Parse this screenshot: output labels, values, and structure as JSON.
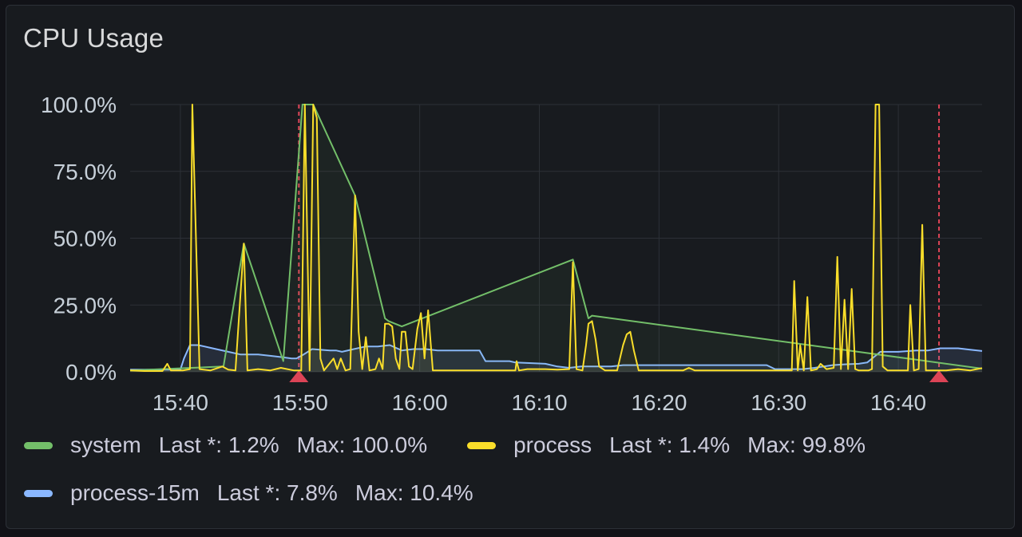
{
  "panel": {
    "title": "CPU Usage"
  },
  "colors": {
    "system": "#73bf69",
    "process": "#fade2a",
    "process15m": "#8ab8ff",
    "annotation": "#f2495c",
    "grid": "#2c3037",
    "text": "#c7d0d9"
  },
  "legend": [
    {
      "name": "system",
      "last_label": "Last *: 1.2%",
      "max_label": "Max: 100.0%",
      "color": "#73bf69"
    },
    {
      "name": "process",
      "last_label": "Last *: 1.4%",
      "max_label": "Max: 99.8%",
      "color": "#fade2a"
    },
    {
      "name": "process-15m",
      "last_label": "Last *: 7.8%",
      "max_label": "Max: 10.4%",
      "color": "#8ab8ff"
    }
  ],
  "chart_data": {
    "type": "line",
    "title": "CPU Usage",
    "y_ticks": [
      "0.0%",
      "25.0%",
      "50.0%",
      "75.0%",
      "100.0%"
    ],
    "x_ticks": [
      "15:40",
      "15:50",
      "16:00",
      "16:10",
      "16:20",
      "16:30",
      "16:40"
    ],
    "x_tick_minutes": [
      580,
      590,
      600,
      610,
      620,
      630,
      640
    ],
    "xlim": [
      575.8,
      647.0
    ],
    "ylim": [
      0,
      100
    ],
    "annotations_minutes": [
      589.9,
      643.4
    ],
    "series": [
      {
        "name": "process",
        "color": "#fade2a",
        "points": [
          [
            575.8,
            0.5
          ],
          [
            577,
            0.3
          ],
          [
            578.5,
            0.3
          ],
          [
            578.9,
            3
          ],
          [
            579.2,
            0.5
          ],
          [
            580.2,
            0.5
          ],
          [
            580.8,
            1
          ],
          [
            581,
            100
          ],
          [
            581.6,
            1
          ],
          [
            582.5,
            0.5
          ],
          [
            583.5,
            2
          ],
          [
            584,
            0.8
          ],
          [
            584.6,
            0.5
          ],
          [
            585.3,
            48
          ],
          [
            585.6,
            0.5
          ],
          [
            586.5,
            1
          ],
          [
            587.5,
            0.5
          ],
          [
            588.4,
            1.5
          ],
          [
            589.5,
            0.5
          ],
          [
            590.1,
            0.5
          ],
          [
            590.4,
            100
          ],
          [
            590.8,
            0.5
          ],
          [
            591.1,
            100
          ],
          [
            591.4,
            95
          ],
          [
            591.7,
            5
          ],
          [
            592,
            0.5
          ],
          [
            592.8,
            5
          ],
          [
            593.1,
            1
          ],
          [
            593.4,
            5
          ],
          [
            593.8,
            0.5
          ],
          [
            594.2,
            1
          ],
          [
            594.6,
            66
          ],
          [
            594.9,
            15
          ],
          [
            595.2,
            1
          ],
          [
            595.5,
            13
          ],
          [
            595.8,
            0.5
          ],
          [
            596.3,
            1
          ],
          [
            596.6,
            5
          ],
          [
            596.9,
            1
          ],
          [
            597.1,
            18
          ],
          [
            597.4,
            18
          ],
          [
            597.7,
            17
          ],
          [
            598,
            5
          ],
          [
            598.3,
            1
          ],
          [
            598.5,
            15
          ],
          [
            598.8,
            15
          ],
          [
            599.1,
            2
          ],
          [
            599.4,
            1
          ],
          [
            599.8,
            16
          ],
          [
            600.1,
            22
          ],
          [
            600.4,
            5
          ],
          [
            600.7,
            23
          ],
          [
            601.1,
            0.5
          ],
          [
            602,
            0.5
          ],
          [
            603,
            0.5
          ],
          [
            604.5,
            0.5
          ],
          [
            605.5,
            0.5
          ],
          [
            607,
            0.5
          ],
          [
            608,
            0.5
          ],
          [
            608.1,
            4
          ],
          [
            608.3,
            0.5
          ],
          [
            609,
            1
          ],
          [
            610.5,
            1
          ],
          [
            611.5,
            0.8
          ],
          [
            612.5,
            1
          ],
          [
            612.8,
            41
          ],
          [
            613.1,
            1
          ],
          [
            613.6,
            0.5
          ],
          [
            613.9,
            10
          ],
          [
            614.1,
            18
          ],
          [
            614.4,
            19
          ],
          [
            614.7,
            12
          ],
          [
            615,
            2
          ],
          [
            615.5,
            0.5
          ],
          [
            616.5,
            0.5
          ],
          [
            617,
            10
          ],
          [
            617.3,
            14
          ],
          [
            617.6,
            15
          ],
          [
            617.9,
            8
          ],
          [
            618.3,
            0.5
          ],
          [
            620,
            0.5
          ],
          [
            622,
            0.5
          ],
          [
            622.5,
            1.5
          ],
          [
            623,
            0.5
          ],
          [
            625,
            0.5
          ],
          [
            627,
            0.5
          ],
          [
            629,
            0.5
          ],
          [
            630,
            0.5
          ],
          [
            631.1,
            0.5
          ],
          [
            631.3,
            34
          ],
          [
            631.6,
            0.5
          ],
          [
            631.8,
            10
          ],
          [
            632.1,
            0.5
          ],
          [
            632.4,
            28
          ],
          [
            632.7,
            0.5
          ],
          [
            633.2,
            1
          ],
          [
            633.5,
            3
          ],
          [
            634,
            1
          ],
          [
            634.6,
            1.5
          ],
          [
            634.9,
            43
          ],
          [
            635.2,
            1
          ],
          [
            635.5,
            27
          ],
          [
            635.8,
            1
          ],
          [
            636.1,
            31
          ],
          [
            636.4,
            1
          ],
          [
            636.7,
            0.5
          ],
          [
            637.5,
            0.5
          ],
          [
            637.8,
            1
          ],
          [
            638.1,
            100
          ],
          [
            638.4,
            100
          ],
          [
            638.7,
            2
          ],
          [
            639.1,
            0.5
          ],
          [
            640,
            0.5
          ],
          [
            640.8,
            0.5
          ],
          [
            641,
            25
          ],
          [
            641.3,
            0.5
          ],
          [
            641.7,
            1
          ],
          [
            642,
            55
          ],
          [
            642.3,
            0.5
          ],
          [
            643,
            0.5
          ],
          [
            644,
            0.5
          ],
          [
            645,
            1
          ],
          [
            646,
            0.5
          ],
          [
            647,
            1.4
          ]
        ]
      },
      {
        "name": "system",
        "color": "#73bf69",
        "points": [
          [
            575.8,
            0.5
          ],
          [
            583.6,
            2
          ],
          [
            585.3,
            48
          ],
          [
            588.6,
            4
          ],
          [
            590.2,
            100
          ],
          [
            591.1,
            100
          ],
          [
            594.6,
            66
          ],
          [
            597.1,
            20
          ],
          [
            597.4,
            19
          ],
          [
            598.5,
            17
          ],
          [
            612.8,
            42
          ],
          [
            614.1,
            20
          ],
          [
            614.4,
            21
          ],
          [
            647,
            1.2
          ]
        ]
      },
      {
        "name": "process-15m",
        "color": "#8ab8ff",
        "points": [
          [
            575.8,
            0.8
          ],
          [
            580,
            0.8
          ],
          [
            580.3,
            5
          ],
          [
            580.8,
            10
          ],
          [
            581.5,
            10
          ],
          [
            582.5,
            9
          ],
          [
            584,
            7.5
          ],
          [
            585,
            6.5
          ],
          [
            586.5,
            6.5
          ],
          [
            587.5,
            6
          ],
          [
            588.5,
            5.5
          ],
          [
            589.3,
            5
          ],
          [
            589.7,
            5
          ],
          [
            590.3,
            6.5
          ],
          [
            591,
            8.5
          ],
          [
            592.5,
            8
          ],
          [
            593,
            8
          ],
          [
            593.5,
            7.5
          ],
          [
            594.5,
            8.5
          ],
          [
            595.5,
            9.5
          ],
          [
            596.5,
            9.5
          ],
          [
            597.5,
            10
          ],
          [
            598.5,
            8
          ],
          [
            599.5,
            8.5
          ],
          [
            600.5,
            8.5
          ],
          [
            601.5,
            8
          ],
          [
            603,
            8
          ],
          [
            605,
            8
          ],
          [
            605.5,
            4
          ],
          [
            607.5,
            4
          ],
          [
            608,
            3.5
          ],
          [
            610.5,
            3
          ],
          [
            611.5,
            2
          ],
          [
            612.5,
            1.5
          ],
          [
            613.5,
            2
          ],
          [
            614.5,
            2
          ],
          [
            616,
            2
          ],
          [
            617,
            2.5
          ],
          [
            620,
            2.5
          ],
          [
            625,
            2.5
          ],
          [
            629,
            2.5
          ],
          [
            629.7,
            1
          ],
          [
            632,
            1
          ],
          [
            633,
            1.5
          ],
          [
            634.5,
            2.5
          ],
          [
            635.5,
            2.8
          ],
          [
            636.7,
            3
          ],
          [
            637.4,
            3.5
          ],
          [
            638.5,
            7.5
          ],
          [
            640,
            7.5
          ],
          [
            641.5,
            8
          ],
          [
            642.5,
            8
          ],
          [
            643.5,
            8.8
          ],
          [
            645,
            8.8
          ],
          [
            646,
            8.3
          ],
          [
            647,
            7.8
          ]
        ]
      }
    ]
  }
}
